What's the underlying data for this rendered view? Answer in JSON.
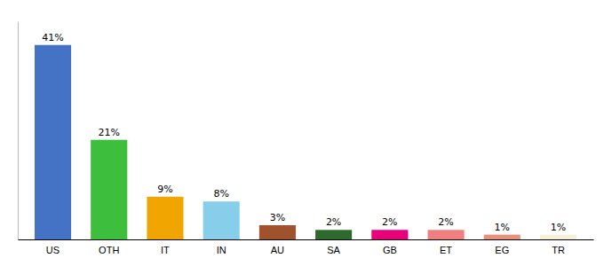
{
  "chart_data": {
    "type": "bar",
    "categories": [
      "US",
      "OTH",
      "IT",
      "IN",
      "AU",
      "SA",
      "GB",
      "ET",
      "EG",
      "TR"
    ],
    "values": [
      41,
      21,
      9,
      8,
      3,
      2,
      2,
      2,
      1,
      1
    ],
    "value_labels": [
      "41%",
      "21%",
      "9%",
      "8%",
      "3%",
      "2%",
      "2%",
      "2%",
      "1%",
      "1%"
    ],
    "colors": [
      "#4472c4",
      "#3dbf3d",
      "#f0a500",
      "#87ceeb",
      "#a0522d",
      "#2d6a2d",
      "#e8007a",
      "#f08080",
      "#e8917a",
      "#f5f0d8"
    ],
    "ylim": [
      0,
      46
    ],
    "data_labels": true,
    "tick_labels": "x",
    "grid": false
  }
}
